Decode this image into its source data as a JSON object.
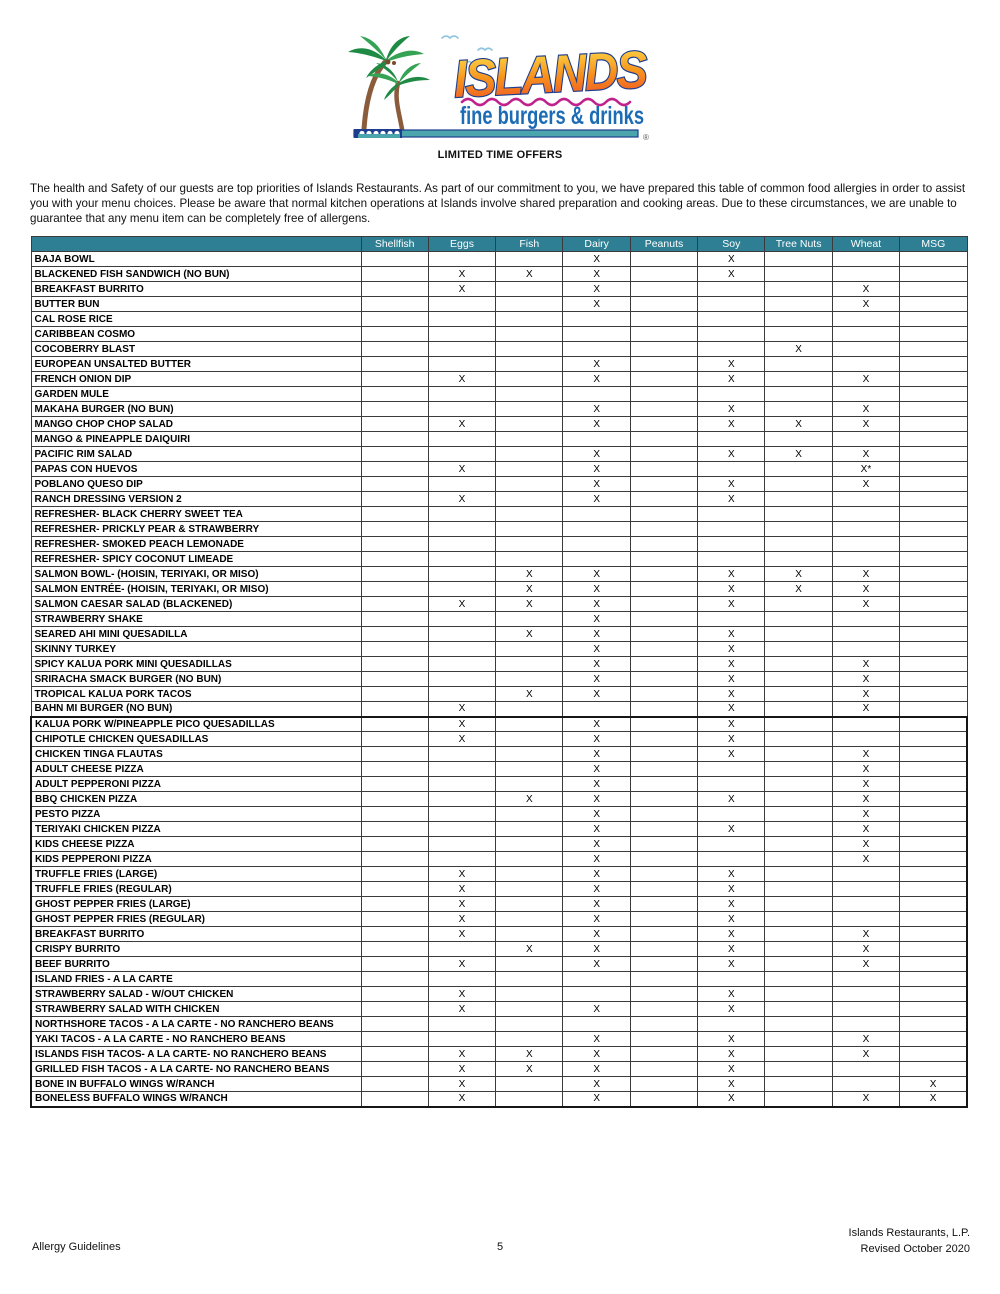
{
  "logo": {
    "brand": "ISLANDS",
    "tagline": "fine burgers & drinks",
    "registered_mark": "®",
    "colors": {
      "brand_fill_top": "#FFE14D",
      "brand_fill_mid": "#F7941D",
      "brand_fill_bottom": "#EF4E23",
      "brand_outline": "#1D3E8F",
      "tagline_blue": "#1C6BB5",
      "wave_magenta": "#C0218C",
      "bar_teal": "#4AA6AC",
      "palm_green": "#1E8A44",
      "palm_green_light": "#35A353",
      "trunk_brown": "#8A5C3B",
      "bird_blue": "#8FC4E0"
    }
  },
  "subtitle": "LIMITED TIME OFFERS",
  "intro": "The health and Safety of our guests are top priorities of Islands Restaurants. As part of our commitment to you, we have prepared this table of common food allergies in order to assist you with your menu choices. Please be aware that normal kitchen operations at Islands involve shared preparation and cooking areas. Due to these circumstances, we are unable to guarantee that any menu item can be completely free of allergens.",
  "table": {
    "header_bg": "#2E7F93",
    "columns": [
      "Shellfish",
      "Eggs",
      "Fish",
      "Dairy",
      "Peanuts",
      "Soy",
      "Tree Nuts",
      "Wheat",
      "MSG"
    ],
    "rows": [
      {
        "name": "BAJA BOWL",
        "marks": [
          "",
          "",
          "",
          "X",
          "",
          "X",
          "",
          "",
          ""
        ]
      },
      {
        "name": "BLACKENED FISH SANDWICH (NO BUN)",
        "marks": [
          "",
          "X",
          "X",
          "X",
          "",
          "X",
          "",
          "",
          ""
        ]
      },
      {
        "name": "BREAKFAST BURRITO",
        "marks": [
          "",
          "X",
          "",
          "X",
          "",
          "",
          "",
          "X",
          ""
        ]
      },
      {
        "name": "BUTTER BUN",
        "marks": [
          "",
          "",
          "",
          "X",
          "",
          "",
          "",
          "X",
          ""
        ]
      },
      {
        "name": "CAL ROSE RICE",
        "marks": [
          "",
          "",
          "",
          "",
          "",
          "",
          "",
          "",
          ""
        ]
      },
      {
        "name": "CARIBBEAN COSMO",
        "marks": [
          "",
          "",
          "",
          "",
          "",
          "",
          "",
          "",
          ""
        ]
      },
      {
        "name": "COCOBERRY BLAST",
        "marks": [
          "",
          "",
          "",
          "",
          "",
          "",
          "X",
          "",
          ""
        ]
      },
      {
        "name": "EUROPEAN UNSALTED BUTTER",
        "marks": [
          "",
          "",
          "",
          "X",
          "",
          "X",
          "",
          "",
          ""
        ]
      },
      {
        "name": "FRENCH ONION DIP",
        "marks": [
          "",
          "X",
          "",
          "X",
          "",
          "X",
          "",
          "X",
          ""
        ]
      },
      {
        "name": "GARDEN MULE",
        "marks": [
          "",
          "",
          "",
          "",
          "",
          "",
          "",
          "",
          ""
        ]
      },
      {
        "name": "MAKAHA BURGER (NO BUN)",
        "marks": [
          "",
          "",
          "",
          "X",
          "",
          "X",
          "",
          "X",
          ""
        ]
      },
      {
        "name": "MANGO CHOP CHOP SALAD",
        "marks": [
          "",
          "X",
          "",
          "X",
          "",
          "X",
          "X",
          "X",
          ""
        ]
      },
      {
        "name": "MANGO & PINEAPPLE DAIQUIRI",
        "marks": [
          "",
          "",
          "",
          "",
          "",
          "",
          "",
          "",
          ""
        ]
      },
      {
        "name": "PACIFIC RIM SALAD",
        "marks": [
          "",
          "",
          "",
          "X",
          "",
          "X",
          "X",
          "X",
          ""
        ]
      },
      {
        "name": "PAPAS CON HUEVOS",
        "marks": [
          "",
          "X",
          "",
          "X",
          "",
          "",
          "",
          "X*",
          ""
        ]
      },
      {
        "name": "POBLANO QUESO DIP",
        "marks": [
          "",
          "",
          "",
          "X",
          "",
          "X",
          "",
          "X",
          ""
        ]
      },
      {
        "name": "RANCH DRESSING VERSION 2",
        "marks": [
          "",
          "X",
          "",
          "X",
          "",
          "X",
          "",
          "",
          ""
        ]
      },
      {
        "name": "REFRESHER- BLACK CHERRY SWEET TEA",
        "marks": [
          "",
          "",
          "",
          "",
          "",
          "",
          "",
          "",
          ""
        ]
      },
      {
        "name": "REFRESHER- PRICKLY PEAR & STRAWBERRY",
        "marks": [
          "",
          "",
          "",
          "",
          "",
          "",
          "",
          "",
          ""
        ]
      },
      {
        "name": "REFRESHER- SMOKED PEACH LEMONADE",
        "marks": [
          "",
          "",
          "",
          "",
          "",
          "",
          "",
          "",
          ""
        ]
      },
      {
        "name": "REFRESHER- SPICY COCONUT LIMEADE",
        "marks": [
          "",
          "",
          "",
          "",
          "",
          "",
          "",
          "",
          ""
        ]
      },
      {
        "name": "SALMON BOWL- (HOISIN, TERIYAKI, OR MISO)",
        "marks": [
          "",
          "",
          "X",
          "X",
          "",
          "X",
          "X",
          "X",
          ""
        ]
      },
      {
        "name": "SALMON ENTRÉE- (HOISIN, TERIYAKI, OR MISO)",
        "marks": [
          "",
          "",
          "X",
          "X",
          "",
          "X",
          "X",
          "X",
          ""
        ]
      },
      {
        "name": "SALMON CAESAR SALAD (BLACKENED)",
        "marks": [
          "",
          "X",
          "X",
          "X",
          "",
          "X",
          "",
          "X",
          ""
        ]
      },
      {
        "name": "STRAWBERRY SHAKE",
        "marks": [
          "",
          "",
          "",
          "X",
          "",
          "",
          "",
          "",
          ""
        ]
      },
      {
        "name": "SEARED AHI MINI QUESADILLA",
        "marks": [
          "",
          "",
          "X",
          "X",
          "",
          "X",
          "",
          "",
          ""
        ]
      },
      {
        "name": "SKINNY TURKEY",
        "marks": [
          "",
          "",
          "",
          "X",
          "",
          "X",
          "",
          "",
          ""
        ]
      },
      {
        "name": "SPICY KALUA PORK MINI QUESADILLAS",
        "marks": [
          "",
          "",
          "",
          "X",
          "",
          "X",
          "",
          "X",
          ""
        ]
      },
      {
        "name": "SRIRACHA SMACK BURGER (NO BUN)",
        "marks": [
          "",
          "",
          "",
          "X",
          "",
          "X",
          "",
          "X",
          ""
        ]
      },
      {
        "name": "TROPICAL KALUA PORK TACOS",
        "marks": [
          "",
          "",
          "X",
          "X",
          "",
          "X",
          "",
          "X",
          ""
        ]
      },
      {
        "name": "BAHN MI BURGER (NO BUN)",
        "marks": [
          "",
          "X",
          "",
          "",
          "",
          "X",
          "",
          "X",
          ""
        ]
      },
      {
        "name": "KALUA PORK W/PINEAPPLE PICO QUESADILLAS",
        "marks": [
          "",
          "X",
          "",
          "X",
          "",
          "X",
          "",
          "",
          ""
        ]
      },
      {
        "name": "CHIPOTLE CHICKEN QUESADILLAS",
        "marks": [
          "",
          "X",
          "",
          "X",
          "",
          "X",
          "",
          "",
          ""
        ]
      },
      {
        "name": "CHICKEN TINGA FLAUTAS",
        "marks": [
          "",
          "",
          "",
          "X",
          "",
          "X",
          "",
          "X",
          ""
        ]
      },
      {
        "name": "ADULT CHEESE PIZZA",
        "marks": [
          "",
          "",
          "",
          "X",
          "",
          "",
          "",
          "X",
          ""
        ]
      },
      {
        "name": "ADULT PEPPERONI PIZZA",
        "marks": [
          "",
          "",
          "",
          "X",
          "",
          "",
          "",
          "X",
          ""
        ]
      },
      {
        "name": "BBQ CHICKEN PIZZA",
        "marks": [
          "",
          "",
          "X",
          "X",
          "",
          "X",
          "",
          "X",
          ""
        ]
      },
      {
        "name": "PESTO PIZZA",
        "marks": [
          "",
          "",
          "",
          "X",
          "",
          "",
          "",
          "X",
          ""
        ]
      },
      {
        "name": "TERIYAKI CHICKEN PIZZA",
        "marks": [
          "",
          "",
          "",
          "X",
          "",
          "X",
          "",
          "X",
          ""
        ]
      },
      {
        "name": "KIDS CHEESE PIZZA",
        "marks": [
          "",
          "",
          "",
          "X",
          "",
          "",
          "",
          "X",
          ""
        ]
      },
      {
        "name": "KIDS PEPPERONI PIZZA",
        "marks": [
          "",
          "",
          "",
          "X",
          "",
          "",
          "",
          "X",
          ""
        ]
      },
      {
        "name": "TRUFFLE FRIES (LARGE)",
        "marks": [
          "",
          "X",
          "",
          "X",
          "",
          "X",
          "",
          "",
          ""
        ]
      },
      {
        "name": "TRUFFLE FRIES (REGULAR)",
        "marks": [
          "",
          "X",
          "",
          "X",
          "",
          "X",
          "",
          "",
          ""
        ]
      },
      {
        "name": "GHOST PEPPER FRIES (LARGE)",
        "marks": [
          "",
          "X",
          "",
          "X",
          "",
          "X",
          "",
          "",
          ""
        ]
      },
      {
        "name": "GHOST PEPPER FRIES (REGULAR)",
        "marks": [
          "",
          "X",
          "",
          "X",
          "",
          "X",
          "",
          "",
          ""
        ]
      },
      {
        "name": "BREAKFAST BURRITO",
        "marks": [
          "",
          "X",
          "",
          "X",
          "",
          "X",
          "",
          "X",
          ""
        ]
      },
      {
        "name": "CRISPY BURRITO",
        "marks": [
          "",
          "",
          "X",
          "X",
          "",
          "X",
          "",
          "X",
          ""
        ]
      },
      {
        "name": "BEEF BURRITO",
        "marks": [
          "",
          "X",
          "",
          "X",
          "",
          "X",
          "",
          "X",
          ""
        ]
      },
      {
        "name": "ISLAND FRIES - A LA CARTE",
        "marks": [
          "",
          "",
          "",
          "",
          "",
          "",
          "",
          "",
          ""
        ]
      },
      {
        "name": "STRAWBERRY SALAD - W/OUT CHICKEN",
        "marks": [
          "",
          "X",
          "",
          "",
          "",
          "X",
          "",
          "",
          ""
        ]
      },
      {
        "name": "STRAWBERRY SALAD WITH CHICKEN",
        "marks": [
          "",
          "X",
          "",
          "X",
          "",
          "X",
          "",
          "",
          ""
        ]
      },
      {
        "name": "NORTHSHORE TACOS - A LA CARTE - NO RANCHERO BEANS",
        "marks": [
          "",
          "",
          "",
          "",
          "",
          "",
          "",
          "",
          ""
        ]
      },
      {
        "name": "YAKI TACOS - A LA CARTE - NO RANCHERO BEANS",
        "marks": [
          "",
          "",
          "",
          "X",
          "",
          "X",
          "",
          "X",
          ""
        ]
      },
      {
        "name": "ISLANDS FISH TACOS- A LA CARTE- NO RANCHERO BEANS",
        "marks": [
          "",
          "X",
          "X",
          "X",
          "",
          "X",
          "",
          "X",
          ""
        ]
      },
      {
        "name": "GRILLED FISH TACOS - A LA CARTE- NO RANCHERO BEANS",
        "marks": [
          "",
          "X",
          "X",
          "X",
          "",
          "X",
          "",
          "",
          ""
        ]
      },
      {
        "name": "BONE IN BUFFALO WINGS W/RANCH",
        "marks": [
          "",
          "X",
          "",
          "X",
          "",
          "X",
          "",
          "",
          "X"
        ]
      },
      {
        "name": "BONELESS BUFFALO WINGS W/RANCH",
        "marks": [
          "",
          "X",
          "",
          "X",
          "",
          "X",
          "",
          "X",
          "X"
        ]
      }
    ]
  },
  "footer": {
    "left": "Allergy Guidelines",
    "page_number": "5",
    "right_line1": "Islands Restaurants, L.P.",
    "right_line2": "Revised October 2020"
  }
}
